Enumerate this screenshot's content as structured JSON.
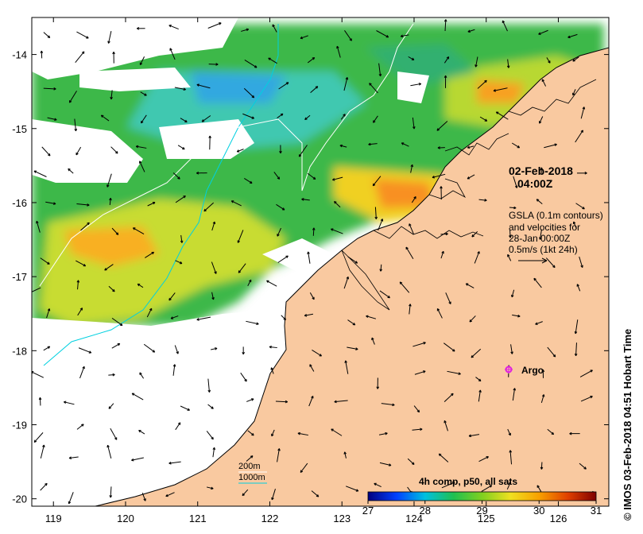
{
  "map": {
    "lon_range": [
      118.7,
      126.7
    ],
    "lat_range": [
      -20.1,
      -13.5
    ],
    "lon_ticks": [
      119,
      120,
      121,
      122,
      123,
      124,
      125,
      126
    ],
    "lon_tick_labels": [
      "119",
      "120",
      "121",
      "122",
      "123",
      "124",
      "125",
      "126"
    ],
    "lat_ticks": [
      -14,
      -15,
      -16,
      -17,
      -18,
      -19,
      -20
    ],
    "lat_tick_labels": [
      "-14",
      "-15",
      "-16",
      "-17",
      "-18",
      "-19",
      "-20"
    ],
    "colors": {
      "land": "#f9c9a0",
      "no_data": "#ffffff",
      "contour_200m": "#ffffff",
      "contour_1000m": "#00d0e0",
      "argo": "#e020e0"
    }
  },
  "timestamp": {
    "line1": "02-Feb-2018",
    "line2": "04:00Z"
  },
  "velocity_note": {
    "lines": [
      "GSLA (0.1m contours)",
      "and velocities for",
      "28-Jan 00:00Z",
      "0.5m/s (1kt 24h)"
    ]
  },
  "argo_label": "Argo",
  "depth_legend": {
    "shallow": "200m",
    "deep": "1000m"
  },
  "colorbar": {
    "title": "4h comp, p50, all sats",
    "min": 27,
    "max": 31,
    "tick_values": [
      27,
      28,
      29,
      30,
      31
    ],
    "tick_labels": [
      "27",
      "28",
      "29",
      "30",
      "31"
    ],
    "stops": [
      "#00007f",
      "#0040ff",
      "#00c0e0",
      "#20c050",
      "#80d020",
      "#f0e020",
      "#f8a000",
      "#e04000",
      "#7f0000"
    ]
  },
  "credit": "IMOS 03-Feb-2018 04:51 Hobart Time",
  "copyright_symbol": "©"
}
